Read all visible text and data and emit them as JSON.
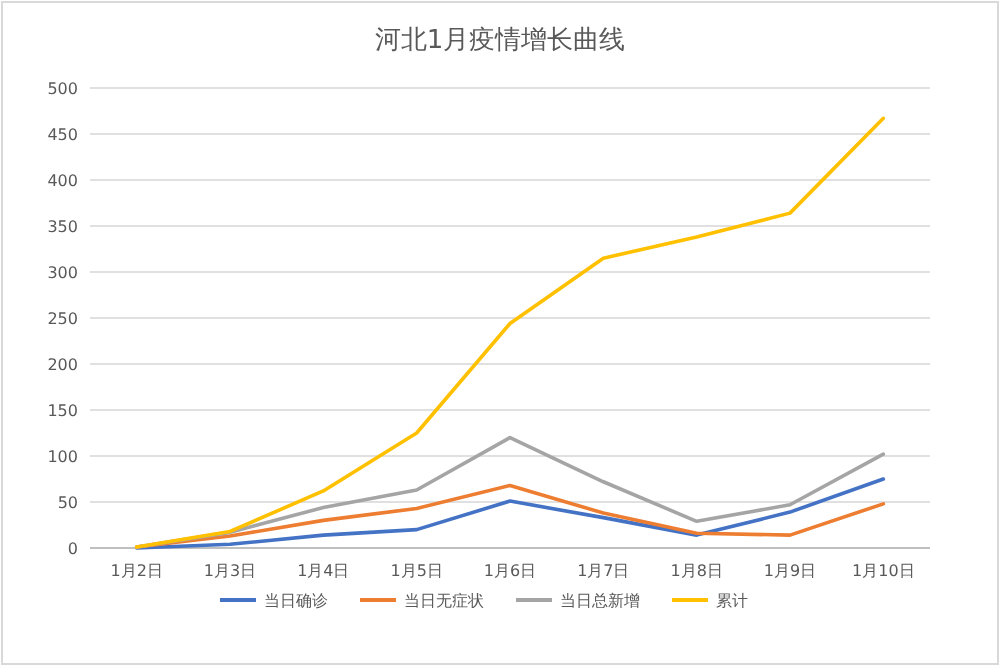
{
  "chart_data": {
    "type": "line",
    "title": "河北1月疫情增长曲线",
    "categories": [
      "1月2日",
      "1月3日",
      "1月4日",
      "1月5日",
      "1月6日",
      "1月7日",
      "1月8日",
      "1月9日",
      "1月10日"
    ],
    "series": [
      {
        "name": "当日确诊",
        "color": "#4472c4",
        "values": [
          0,
          4,
          14,
          20,
          51,
          33,
          14,
          39,
          75
        ]
      },
      {
        "name": "当日无症状",
        "color": "#ed7d31",
        "values": [
          1,
          13,
          30,
          43,
          68,
          38,
          16,
          14,
          48
        ]
      },
      {
        "name": "当日总新增",
        "color": "#a5a5a5",
        "values": [
          1,
          17,
          44,
          63,
          120,
          72,
          29,
          47,
          102
        ]
      },
      {
        "name": "累计",
        "color": "#ffc000",
        "values": [
          1,
          18,
          62,
          125,
          244,
          315,
          338,
          364,
          467
        ]
      }
    ],
    "ylim": [
      0,
      500
    ],
    "yticks": [
      0,
      50,
      100,
      150,
      200,
      250,
      300,
      350,
      400,
      450,
      500
    ],
    "grid": "y",
    "legend": "bottom",
    "marker": "none",
    "line_style": "solid"
  }
}
